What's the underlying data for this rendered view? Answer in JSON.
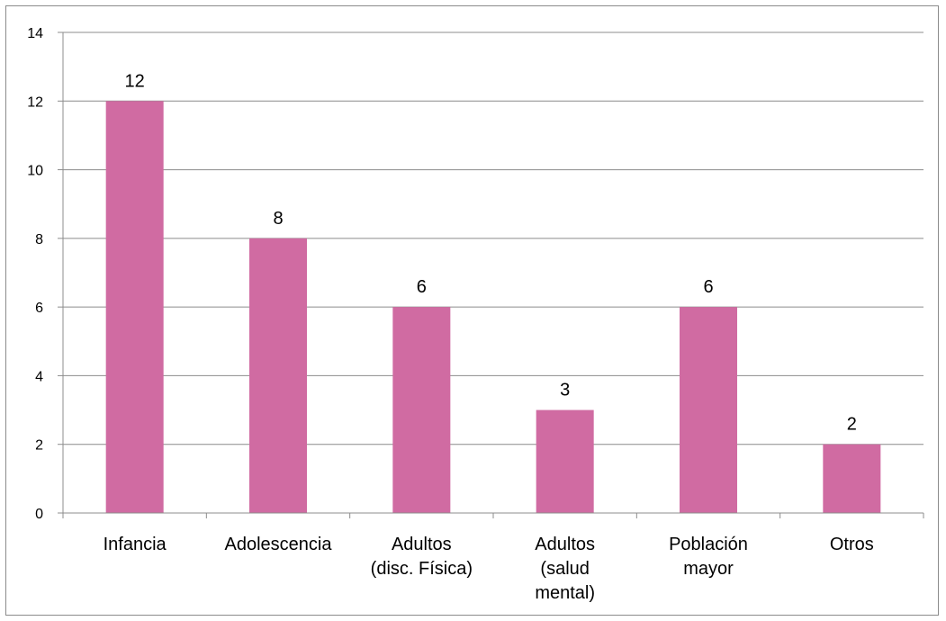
{
  "chart_data": {
    "type": "bar",
    "categories": [
      [
        "Infancia"
      ],
      [
        "Adolescencia"
      ],
      [
        "Adultos",
        "(disc. Física)"
      ],
      [
        "Adultos",
        "(salud",
        "mental)"
      ],
      [
        "Población",
        "mayor"
      ],
      [
        "Otros"
      ]
    ],
    "values": [
      12,
      8,
      6,
      3,
      6,
      2
    ],
    "data_labels": [
      "12",
      "8",
      "6",
      "3",
      "6",
      "2"
    ],
    "y_ticks": [
      "0",
      "2",
      "4",
      "6",
      "8",
      "10",
      "12",
      "14"
    ],
    "ylim": [
      0,
      14
    ],
    "title": "",
    "xlabel": "",
    "ylabel": "",
    "grid": true,
    "legend": "none",
    "colors": {
      "bar": "#d06ba2",
      "grid": "#8c8c8c",
      "axis": "#8c8c8c",
      "border": "#8c8c8c"
    }
  }
}
